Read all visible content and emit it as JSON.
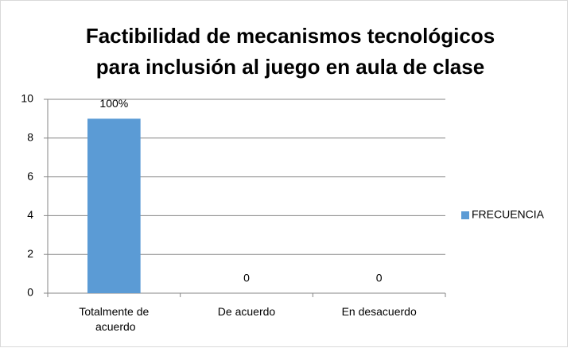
{
  "chart_data": {
    "type": "bar",
    "title": [
      "Factibilidad de mecanismos tecnológicos",
      "para inclusión al juego en aula de clase"
    ],
    "categories": [
      "Totalmente de acuerdo",
      "De acuerdo",
      "En desacuerdo"
    ],
    "series": [
      {
        "name": "FRECUENCIA",
        "color": "#5b9bd5",
        "values": [
          9,
          0,
          0
        ]
      }
    ],
    "annotations": [
      {
        "text": "100%",
        "x": "Totalmente de acuerdo"
      }
    ],
    "ylim": [
      0,
      10
    ],
    "yticks": [
      0,
      2,
      4,
      6,
      8,
      10
    ],
    "grid": true,
    "legend": "right"
  }
}
